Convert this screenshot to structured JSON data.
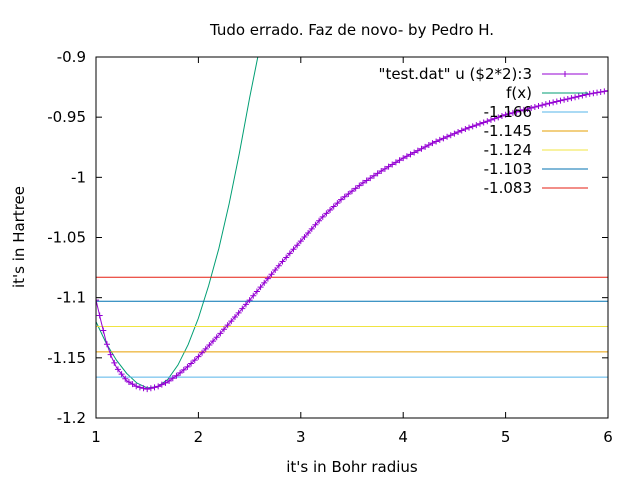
{
  "chart_data": {
    "type": "line",
    "title": "Tudo errado. Faz de novo- by Pedro H.",
    "xlabel": "it's in Bohr radius",
    "ylabel": "it's in Hartree",
    "xlim": [
      1,
      6
    ],
    "ylim": [
      -1.2,
      -0.9
    ],
    "x_ticks": [
      "1",
      "2",
      "3",
      "4",
      "5",
      "6"
    ],
    "y_ticks": [
      "-1.2",
      "-1.15",
      "-1.1",
      "-1.05",
      "-1",
      "-0.95",
      "-0.9"
    ],
    "grid": false,
    "legend_position": "top-right",
    "series": [
      {
        "name": "\"test.dat\" u ($2*2):3",
        "color": "#9400d3",
        "marker": "plus",
        "x": [
          1.0,
          1.05,
          1.1,
          1.15,
          1.2,
          1.3,
          1.4,
          1.5,
          1.6,
          1.7,
          1.8,
          1.9,
          2.0,
          2.2,
          2.4,
          2.6,
          2.8,
          3.0,
          3.2,
          3.4,
          3.6,
          3.8,
          4.0,
          4.3,
          4.6,
          5.0,
          5.4,
          5.8,
          6.0
        ],
        "y": [
          -1.102,
          -1.12,
          -1.137,
          -1.149,
          -1.158,
          -1.169,
          -1.174,
          -1.176,
          -1.174,
          -1.17,
          -1.164,
          -1.157,
          -1.149,
          -1.131,
          -1.112,
          -1.092,
          -1.072,
          -1.053,
          -1.034,
          -1.018,
          -1.005,
          -0.994,
          -0.984,
          -0.971,
          -0.96,
          -0.948,
          -0.939,
          -0.931,
          -0.928
        ]
      },
      {
        "name": "f(x)",
        "color": "#009e73",
        "x": [
          1.0,
          1.1,
          1.2,
          1.3,
          1.4,
          1.5,
          1.6,
          1.7,
          1.8,
          1.9,
          2.0,
          2.1,
          2.2,
          2.3,
          2.4,
          2.5,
          2.58
        ],
        "y": [
          -1.12,
          -1.138,
          -1.152,
          -1.163,
          -1.171,
          -1.175,
          -1.174,
          -1.168,
          -1.156,
          -1.139,
          -1.117,
          -1.09,
          -1.059,
          -1.022,
          -0.98,
          -0.934,
          -0.9
        ]
      },
      {
        "name": "-1.166",
        "color": "#56b4e9",
        "x": [
          1,
          6
        ],
        "y": [
          -1.166,
          -1.166
        ]
      },
      {
        "name": "-1.145",
        "color": "#e69f00",
        "x": [
          1,
          6
        ],
        "y": [
          -1.145,
          -1.145
        ]
      },
      {
        "name": "-1.124",
        "color": "#f0e442",
        "x": [
          1,
          6
        ],
        "y": [
          -1.124,
          -1.124
        ]
      },
      {
        "name": "-1.103",
        "color": "#0072b2",
        "x": [
          1,
          6
        ],
        "y": [
          -1.103,
          -1.103
        ]
      },
      {
        "name": "-1.083",
        "color": "#e51e10",
        "x": [
          1,
          6
        ],
        "y": [
          -1.083,
          -1.083
        ]
      }
    ]
  }
}
